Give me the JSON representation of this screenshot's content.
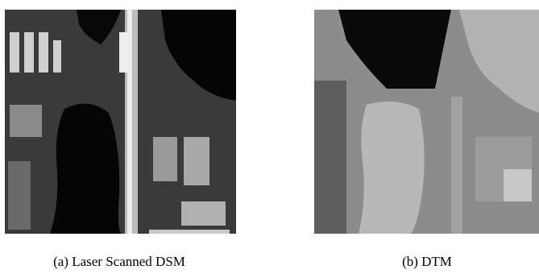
{
  "figure": {
    "panels": [
      {
        "caption": "(a) Laser Scanned DSM"
      },
      {
        "caption": "(b) DTM"
      }
    ]
  }
}
